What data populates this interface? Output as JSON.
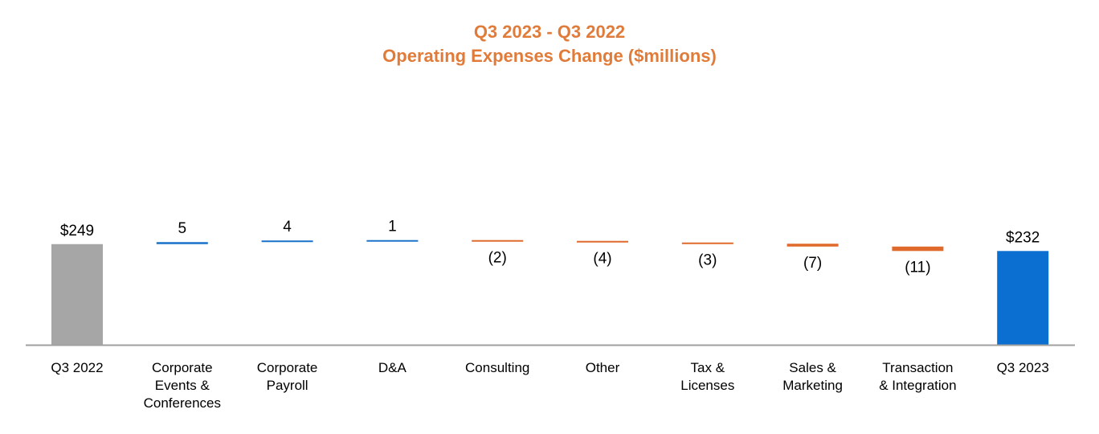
{
  "title_line1": "Q3 2023 - Q3 2022",
  "title_line2": "Operating Expenses Change ($millions)",
  "colors": {
    "title": "#e07b39",
    "total_start": "#a6a6a6",
    "total_end": "#0a6fd1",
    "increase": "#1a73c9",
    "decrease": "#e06a2b",
    "axis": "#a0a0a0"
  },
  "chart_data": {
    "type": "bar",
    "subtype": "waterfall",
    "title": "Q3 2023 - Q3 2022 Operating Expenses Change ($millions)",
    "categories": [
      [
        "Q3 2022"
      ],
      [
        "Corporate",
        "Events &",
        "Conferences"
      ],
      [
        "Corporate",
        "Payroll"
      ],
      [
        "D&A"
      ],
      [
        "Consulting"
      ],
      [
        "Other"
      ],
      [
        "Tax &",
        "Licenses"
      ],
      [
        "Sales &",
        "Marketing"
      ],
      [
        "Transaction",
        "& Integration"
      ],
      [
        "Q3 2023"
      ]
    ],
    "values": [
      249,
      5,
      4,
      1,
      -2,
      -4,
      -3,
      -7,
      -11,
      232
    ],
    "kinds": [
      "total",
      "change",
      "change",
      "change",
      "change",
      "change",
      "change",
      "change",
      "change",
      "total"
    ],
    "labels": [
      "$249",
      "5",
      "4",
      "1",
      "(2)",
      "(4)",
      "(3)",
      "(7)",
      "(11)",
      "$232"
    ],
    "ylim": [
      0,
      260
    ],
    "grid": false,
    "legend": "none",
    "xlabel": "",
    "ylabel": ""
  }
}
